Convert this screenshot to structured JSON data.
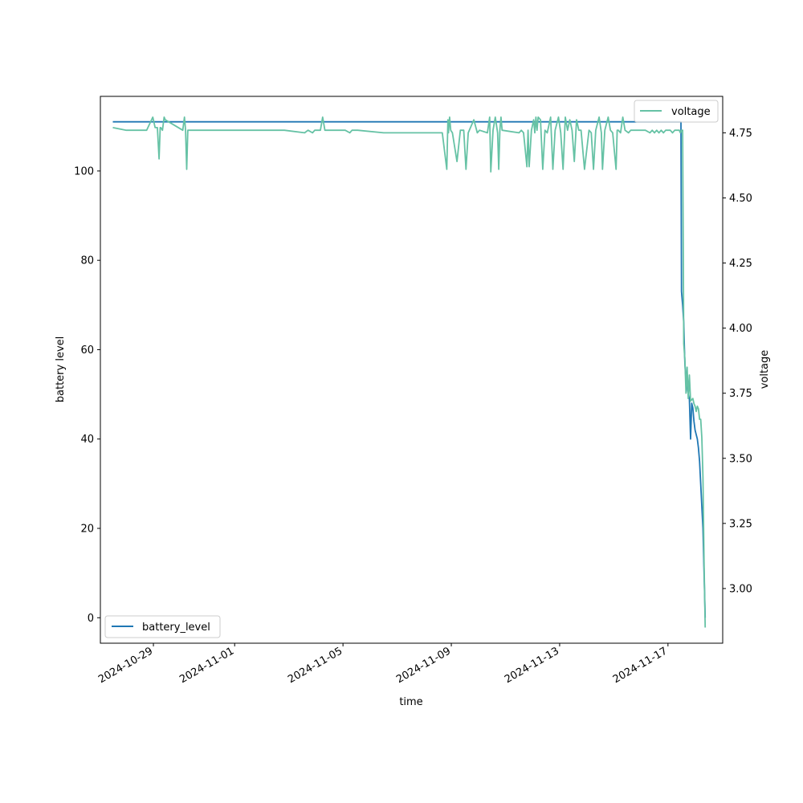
{
  "chart_data": {
    "type": "line",
    "title": "",
    "xlabel": "time",
    "ylabel_left": "battery level",
    "ylabel_right": "voltage",
    "x_type": "date",
    "xlim": [
      "2024-10-27T01:00",
      "2024-11-19T00:30"
    ],
    "x_ticks": [
      "2024-10-29",
      "2024-11-01",
      "2024-11-05",
      "2024-11-09",
      "2024-11-13",
      "2024-11-17"
    ],
    "ylim_left": [
      -5.7,
      116.7
    ],
    "ylim_right": [
      2.79,
      4.89
    ],
    "y_ticks_left": [
      0,
      20,
      40,
      60,
      80,
      100
    ],
    "y_ticks_right": [
      3.0,
      3.25,
      3.5,
      3.75,
      4.0,
      4.25,
      4.5,
      4.75
    ],
    "y_tick_labels_right": [
      "3.00",
      "3.25",
      "3.50",
      "3.75",
      "4.00",
      "4.25",
      "4.50",
      "4.75"
    ],
    "grid": false,
    "colors": {
      "battery_level": "#1f77b4",
      "voltage": "#66c2a5"
    },
    "series": [
      {
        "name": "battery_level",
        "axis": "left",
        "legend_position": "lower-left",
        "x": [
          "2024-10-27T12:00",
          "2024-11-17T11:30",
          "2024-11-17T12:00",
          "2024-11-17T13:00",
          "2024-11-17T14:00",
          "2024-11-17T14:30",
          "2024-11-17T15:00",
          "2024-11-17T15:30",
          "2024-11-17T16:00",
          "2024-11-17T17:00",
          "2024-11-17T18:00",
          "2024-11-17T19:00",
          "2024-11-17T20:00",
          "2024-11-17T21:00",
          "2024-11-17T22:00",
          "2024-11-17T23:00",
          "2024-11-18T00:00",
          "2024-11-18T01:00",
          "2024-11-18T02:00",
          "2024-11-18T03:00",
          "2024-11-18T04:00",
          "2024-11-18T05:00",
          "2024-11-18T06:00",
          "2024-11-18T07:00",
          "2024-11-18T08:00",
          "2024-11-18T08:40",
          "2024-11-18T09:00"
        ],
        "values": [
          111,
          111,
          73,
          70,
          66,
          61,
          57,
          55,
          53,
          52,
          50,
          49,
          40,
          48,
          47,
          44,
          42,
          41,
          40,
          38,
          35,
          30,
          25,
          20,
          10,
          3,
          0
        ]
      },
      {
        "name": "voltage",
        "axis": "right",
        "legend_position": "upper-right",
        "x": [
          "2024-10-27T12:00",
          "2024-10-28T00:00",
          "2024-10-28T18:00",
          "2024-10-28T23:30",
          "2024-10-29T01:30",
          "2024-10-29T03:30",
          "2024-10-29T05:00",
          "2024-10-29T06:00",
          "2024-10-29T06:30",
          "2024-10-29T08:00",
          "2024-10-29T09:30",
          "2024-10-29T10:30",
          "2024-10-30T02:00",
          "2024-10-30T03:30",
          "2024-10-30T04:30",
          "2024-10-30T05:30",
          "2024-10-30T06:30",
          "2024-10-30T08:00",
          "2024-11-02T18:00",
          "2024-11-02T20:00",
          "2024-11-03T14:00",
          "2024-11-03T17:00",
          "2024-11-03T21:00",
          "2024-11-03T23:00",
          "2024-11-04T02:00",
          "2024-11-04T04:00",
          "2024-11-04T06:00",
          "2024-11-04T08:00",
          "2024-11-04T23:00",
          "2024-11-05T02:00",
          "2024-11-05T06:00",
          "2024-11-05T08:00",
          "2024-11-05T13:00",
          "2024-11-06T12:00",
          "2024-11-06T18:00",
          "2024-11-08T16:00",
          "2024-11-08T20:00",
          "2024-11-08T21:00",
          "2024-11-08T21:30",
          "2024-11-08T22:30",
          "2024-11-08T23:30",
          "2024-11-09T01:00",
          "2024-11-09T05:00",
          "2024-11-09T08:00",
          "2024-11-09T11:00",
          "2024-11-09T13:00",
          "2024-11-09T15:00",
          "2024-11-09T20:00",
          "2024-11-09T23:00",
          "2024-11-10T01:00",
          "2024-11-10T08:00",
          "2024-11-10T10:00",
          "2024-11-10T11:00",
          "2024-11-10T13:00",
          "2024-11-10T15:00",
          "2024-11-10T17:00",
          "2024-11-10T18:00",
          "2024-11-10T19:00",
          "2024-11-10T20:00",
          "2024-11-10T21:00",
          "2024-11-11T12:00",
          "2024-11-11T14:00",
          "2024-11-11T16:00",
          "2024-11-11T19:00",
          "2024-11-11T20:00",
          "2024-11-11T21:00",
          "2024-11-11T23:00",
          "2024-11-12T01:00",
          "2024-11-12T02:00",
          "2024-11-12T03:00",
          "2024-11-12T04:00",
          "2024-11-12T05:00",
          "2024-11-12T07:00",
          "2024-11-12T09:00",
          "2024-11-12T11:00",
          "2024-11-12T13:00",
          "2024-11-12T16:00",
          "2024-11-12T18:00",
          "2024-11-12T20:00",
          "2024-11-12T23:00",
          "2024-11-13T01:00",
          "2024-11-13T03:00",
          "2024-11-13T05:00",
          "2024-11-13T07:00",
          "2024-11-13T09:00",
          "2024-11-13T11:00",
          "2024-11-13T13:00",
          "2024-11-13T15:00",
          "2024-11-13T17:00",
          "2024-11-13T19:00",
          "2024-11-13T22:00",
          "2024-11-14T02:00",
          "2024-11-14T04:00",
          "2024-11-14T06:00",
          "2024-11-14T08:00",
          "2024-11-14T11:00",
          "2024-11-14T13:00",
          "2024-11-14T14:00",
          "2024-11-14T16:00",
          "2024-11-14T19:00",
          "2024-11-14T21:00",
          "2024-11-14T23:00",
          "2024-11-15T02:00",
          "2024-11-15T03:00",
          "2024-11-15T04:00",
          "2024-11-15T06:00",
          "2024-11-15T08:00",
          "2024-11-15T10:00",
          "2024-11-15T13:00",
          "2024-11-15T15:00",
          "2024-11-15T17:00",
          "2024-11-16T00:00",
          "2024-11-16T04:00",
          "2024-11-16T08:00",
          "2024-11-16T10:00",
          "2024-11-16T12:00",
          "2024-11-16T14:00",
          "2024-11-16T16:00",
          "2024-11-16T18:00",
          "2024-11-16T20:00",
          "2024-11-16T22:00",
          "2024-11-17T00:00",
          "2024-11-17T02:00",
          "2024-11-17T04:00",
          "2024-11-17T06:00",
          "2024-11-17T08:00",
          "2024-11-17T10:00",
          "2024-11-17T11:00",
          "2024-11-17T12:00",
          "2024-11-17T13:00",
          "2024-11-17T14:00",
          "2024-11-17T15:00",
          "2024-11-17T16:00",
          "2024-11-17T17:00",
          "2024-11-17T18:00",
          "2024-11-17T19:00",
          "2024-11-17T20:00",
          "2024-11-17T22:00",
          "2024-11-17T23:00",
          "2024-11-18T00:00",
          "2024-11-18T01:00",
          "2024-11-18T02:00",
          "2024-11-18T03:00",
          "2024-11-18T04:00",
          "2024-11-18T05:00",
          "2024-11-18T06:00",
          "2024-11-18T07:00",
          "2024-11-18T08:00",
          "2024-11-18T09:00"
        ],
        "values": [
          4.77,
          4.76,
          4.76,
          4.81,
          4.77,
          4.77,
          4.65,
          4.77,
          4.77,
          4.76,
          4.81,
          4.8,
          4.76,
          4.81,
          4.76,
          4.61,
          4.76,
          4.76,
          4.76,
          4.76,
          4.75,
          4.76,
          4.75,
          4.76,
          4.76,
          4.76,
          4.81,
          4.76,
          4.76,
          4.76,
          4.75,
          4.76,
          4.76,
          4.75,
          4.75,
          4.75,
          4.61,
          4.8,
          4.75,
          4.81,
          4.76,
          4.75,
          4.64,
          4.76,
          4.76,
          4.61,
          4.75,
          4.8,
          4.75,
          4.76,
          4.75,
          4.81,
          4.6,
          4.76,
          4.81,
          4.75,
          4.61,
          4.76,
          4.81,
          4.76,
          4.75,
          4.76,
          4.75,
          4.62,
          4.76,
          4.62,
          4.76,
          4.8,
          4.75,
          4.81,
          4.76,
          4.81,
          4.8,
          4.61,
          4.76,
          4.75,
          4.81,
          4.61,
          4.76,
          4.81,
          4.75,
          4.61,
          4.81,
          4.76,
          4.8,
          4.76,
          4.64,
          4.8,
          4.76,
          4.76,
          4.61,
          4.76,
          4.75,
          4.61,
          4.76,
          4.81,
          4.75,
          4.61,
          4.76,
          4.81,
          4.76,
          4.75,
          4.61,
          4.76,
          4.76,
          4.75,
          4.81,
          4.76,
          4.75,
          4.76,
          4.76,
          4.76,
          4.76,
          4.75,
          4.76,
          4.75,
          4.76,
          4.75,
          4.76,
          4.75,
          4.76,
          4.76,
          4.76,
          4.75,
          4.76,
          4.76,
          4.76,
          4.75,
          4.76,
          4.76,
          3.94,
          3.88,
          3.75,
          3.85,
          3.73,
          3.82,
          3.72,
          3.73,
          3.71,
          3.7,
          3.68,
          3.7,
          3.69,
          3.65,
          3.65,
          3.58,
          3.43,
          3.1,
          2.85
        ]
      }
    ]
  }
}
